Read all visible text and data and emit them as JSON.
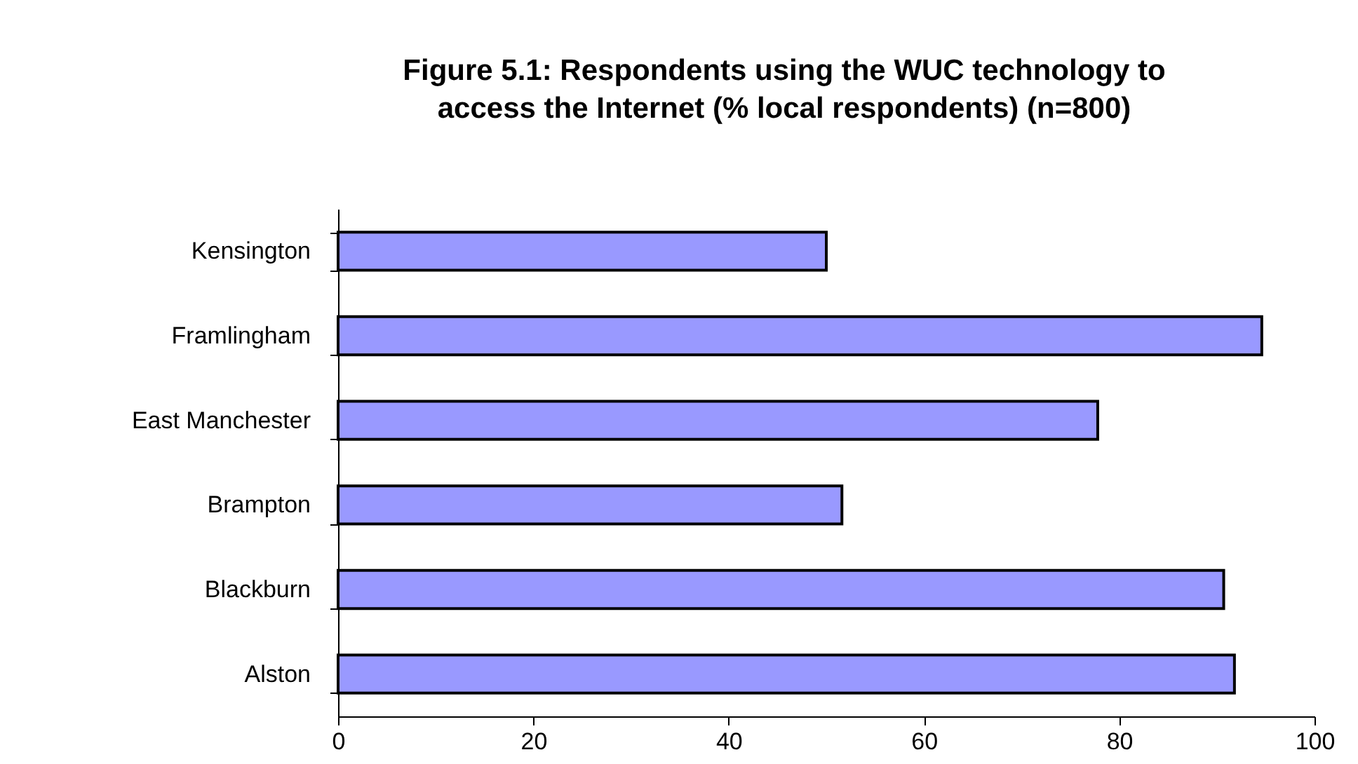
{
  "chart_data": {
    "type": "bar",
    "orientation": "horizontal",
    "title": "Figure 5.1: Respondents using the WUC technology to access the Internet (% local respondents) (n=800)",
    "categories": [
      "Kensington",
      "Framlingham",
      "East Manchester",
      "Brampton",
      "Blackburn",
      "Alston"
    ],
    "values": [
      50,
      94.6,
      77.8,
      51.6,
      90.7,
      91.8
    ],
    "color": "#9999ff",
    "xlim": [
      0,
      100
    ],
    "xticks": [
      0,
      20,
      40,
      60,
      80,
      100
    ],
    "grid": false
  }
}
